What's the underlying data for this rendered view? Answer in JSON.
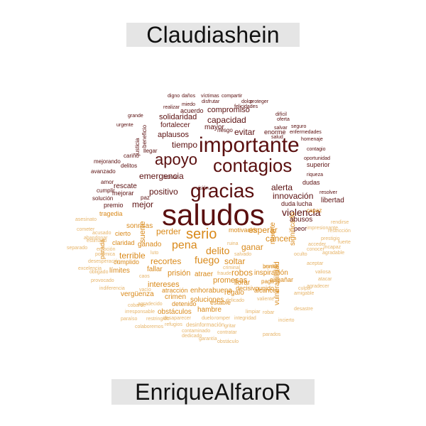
{
  "labels": {
    "top": "Claudiashein",
    "bottom": "EnriqueAlfaroR"
  },
  "colors": {
    "dark": "#5a0f0f",
    "brown": "#7a2a10",
    "orange": "#d9891a",
    "light_orange": "#e7b56a"
  },
  "words": [
    "saludos",
    "importante",
    "contagios",
    "gracias",
    "apoyo",
    "serio",
    "pena",
    "fuego",
    "delito",
    "violencia",
    "capacidad",
    "emergencia",
    "positivo",
    "mejor",
    "innovación",
    "compromiso",
    "solidaridad",
    "tiempo",
    "aplausos",
    "fortalecer",
    "evitar",
    "alerta",
    "cáncer",
    "soltar",
    "ganar",
    "esperar",
    "recortes",
    "prisión",
    "intereses",
    "promesas",
    "robos",
    "inspiración",
    "atraer",
    "llorar",
    "enhorabuena",
    "soluciones",
    "regalo",
    "hambre",
    "estable",
    "detenido",
    "crimen",
    "obstáculos",
    "atracción",
    "vergüenza",
    "límites",
    "terrible",
    "ganado",
    "perder",
    "sonrisas",
    "rescate",
    "mejorar",
    "premio",
    "tragedia",
    "cierto",
    "claridad",
    "cumplido",
    "fallar",
    "acuerdo",
    "mayor",
    "riesgo",
    "enorme",
    "libertad",
    "lucha",
    "duda",
    "dudas",
    "superior",
    "capaz",
    "motivación",
    "decisivo",
    "unido",
    "alcances",
    "engañar",
    "paga",
    "bonito",
    "significado",
    "abusos",
    "peor",
    "muerte",
    "suerte",
    "parada",
    "daños",
    "víctimas",
    "compartir",
    "proteger",
    "dolor",
    "miedo",
    "disfrutar",
    "felicidades",
    "realizar",
    "seguro",
    "enfermedades",
    "oferta",
    "salvar",
    "salud",
    "homenaje",
    "contagio",
    "oportunidad",
    "riqueza",
    "resolver",
    "honor",
    "visión",
    "cariño",
    "justicia",
    "beneficio",
    "llegar",
    "delitos",
    "avanzado",
    "mejorando",
    "amor",
    "cumplir",
    "solución",
    "paz",
    "asesinato",
    "urgente",
    "grande",
    "digno",
    "difícil",
    "culpa",
    "restricción",
    "prestigio",
    "aceptar",
    "excelencia",
    "indiferencia",
    "obligado",
    "provocado",
    "separado",
    "emoción",
    "estimado",
    "cometer",
    "acusado",
    "abandonar",
    "polémica",
    "desesperación",
    "irresponsable",
    "cobarde",
    "agradecido",
    "paraíso",
    "colaboremos",
    "restringido",
    "refugios",
    "desinformación",
    "gritar",
    "robar",
    "incierto",
    "contaminado",
    "contratar",
    "parados",
    "garantía",
    "obstáculo",
    "dedicado",
    "desaparecer",
    "duelo",
    "romper",
    "integridad",
    "delicado",
    "valiente",
    "broma",
    "limpiar",
    "caos",
    "fraude",
    "criminal",
    "ruina",
    "salvado",
    "acceder",
    "agradable",
    "vacío",
    "luto",
    "amigable",
    "impresionante",
    "fuerte",
    "conocer",
    "valiosa",
    "atacar",
    "agradecer",
    "vulnerabilidad",
    "desastre",
    "rendirse",
    "oculto",
    "incapaz"
  ]
}
